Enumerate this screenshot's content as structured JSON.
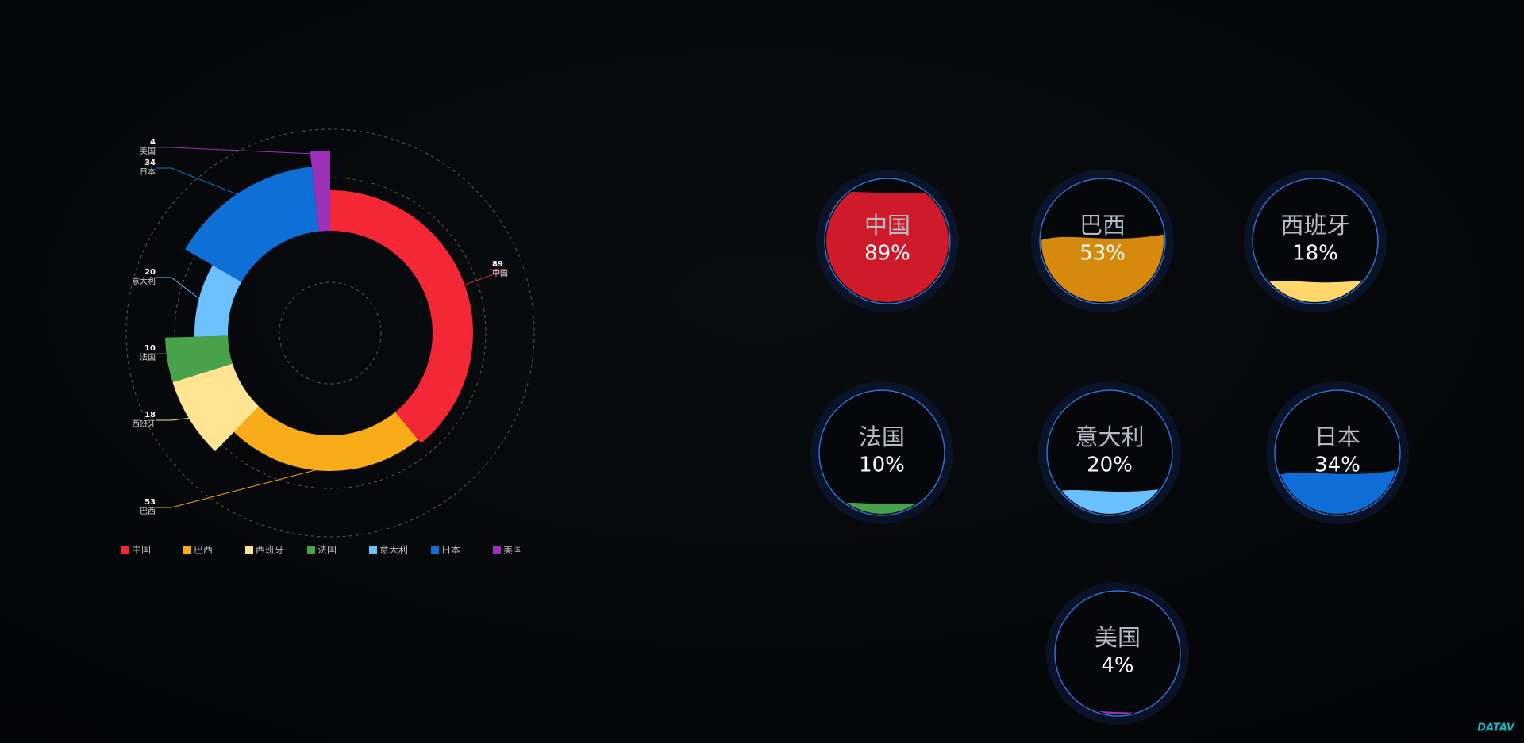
{
  "chart_data": [
    {
      "type": "pie",
      "rose": true,
      "categories": [
        "中国",
        "巴西",
        "西班牙",
        "法国",
        "意大利",
        "日本",
        "美国"
      ],
      "values": [
        89,
        53,
        18,
        10,
        20,
        34,
        4
      ],
      "colors": [
        "#f42736",
        "#faab1a",
        "#ffe592",
        "#47a24b",
        "#6cc0fe",
        "#0e6fd6",
        "#9c31b9"
      ],
      "legend": "bottom"
    },
    {
      "type": "liquidfill",
      "categories": [
        "中国",
        "巴西",
        "西班牙",
        "法国",
        "意大利",
        "日本",
        "美国"
      ],
      "values": [
        89,
        53,
        18,
        10,
        20,
        34,
        4
      ],
      "value_labels": [
        "89%",
        "53%",
        "18%",
        "10%",
        "20%",
        "34%",
        "4%"
      ],
      "colors": [
        "#cf1a2a",
        "#d58a0d",
        "#ffd76a",
        "#47a34b",
        "#6ac0ff",
        "#0f6dd8",
        "#9c31b9"
      ]
    }
  ],
  "logo": "DATAV"
}
